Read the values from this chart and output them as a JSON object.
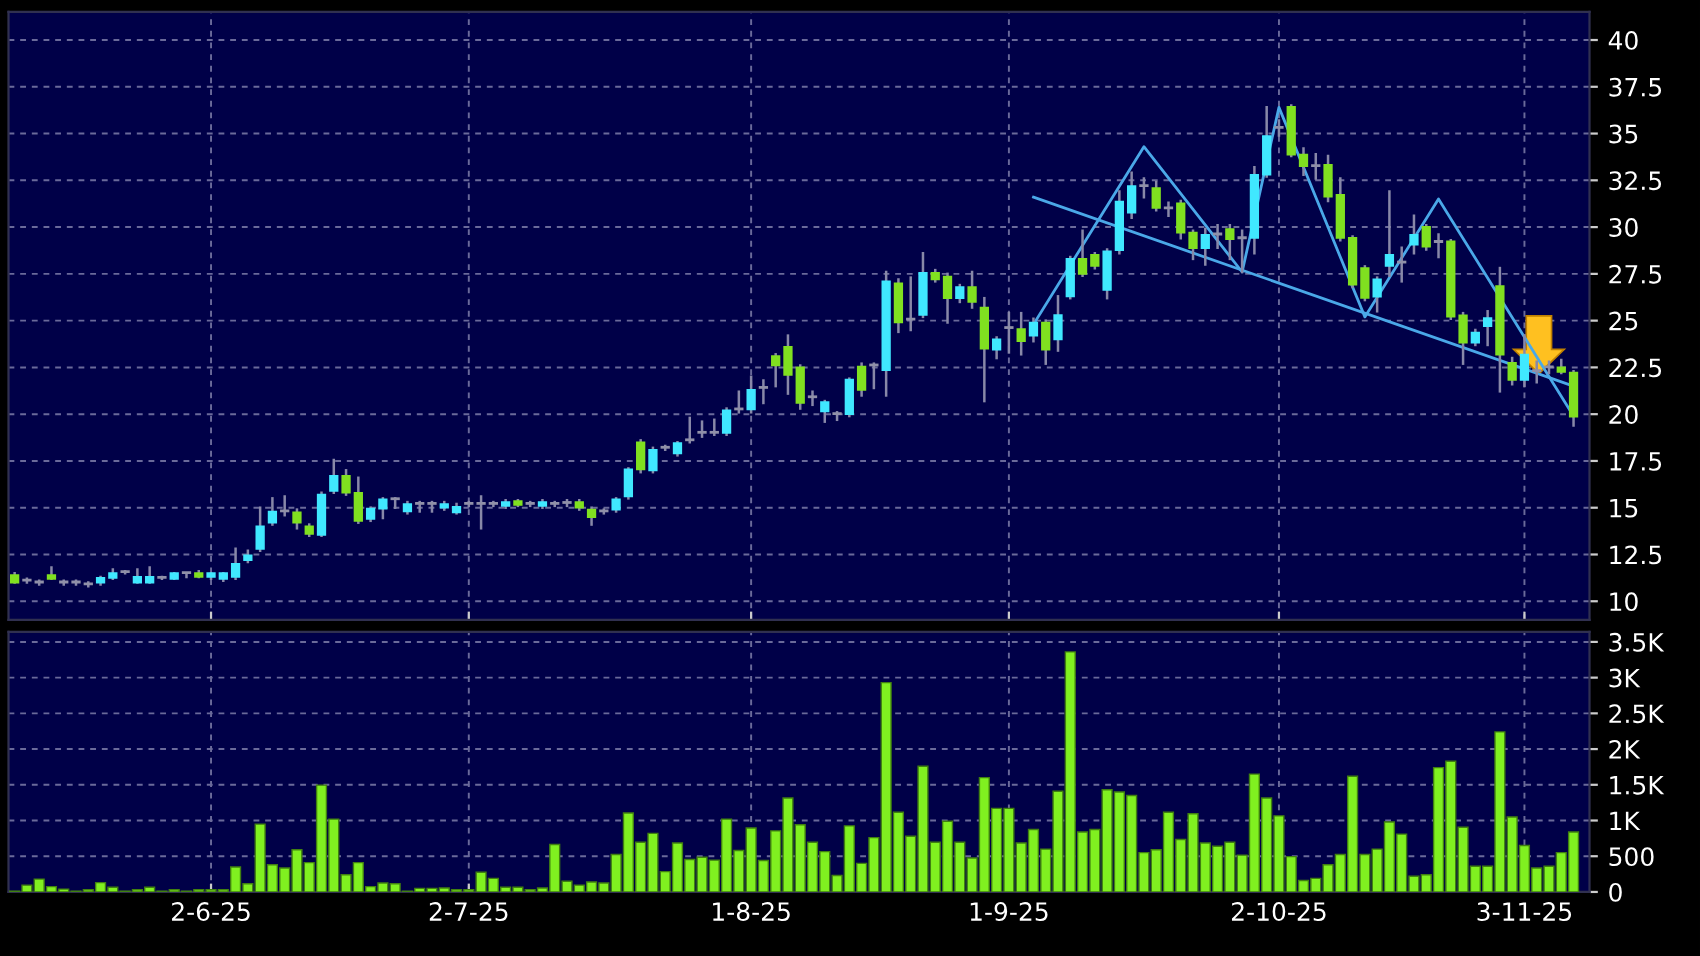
{
  "chart_data": [
    {
      "type": "candlestick",
      "tick_labels": "y",
      "grid": true,
      "categories": [
        null,
        null,
        null,
        null,
        null,
        null,
        null,
        null,
        null,
        null,
        null,
        null,
        null,
        null,
        null,
        null,
        null,
        null,
        null,
        null,
        null,
        null,
        null,
        null,
        null,
        null,
        null,
        null,
        null,
        null,
        null,
        null,
        null,
        null,
        null,
        null,
        null,
        null,
        null,
        null,
        null,
        null,
        null,
        null,
        null,
        null,
        null,
        null,
        null,
        null,
        null,
        null,
        null,
        null,
        null,
        null,
        null,
        null,
        null,
        null,
        null,
        null,
        null,
        null,
        null,
        null,
        null,
        null,
        null,
        null,
        null,
        null,
        null,
        null,
        null,
        null,
        null,
        null,
        null,
        null,
        null,
        null,
        null,
        null,
        null,
        null,
        null,
        null,
        null,
        null,
        null,
        null,
        null,
        null,
        null,
        null,
        null,
        null,
        null,
        null,
        null,
        null,
        null,
        null,
        null,
        null,
        null,
        null,
        null,
        null,
        null,
        null,
        null,
        null,
        null,
        null,
        null,
        null,
        null,
        null,
        null,
        null,
        null,
        null,
        null,
        null,
        null,
        null
      ],
      "ohlc": [
        [
          11.4,
          11.5,
          11.0,
          11.0
        ],
        [
          11.1,
          11.2,
          11.0,
          11.1
        ],
        [
          11.0,
          11.1,
          10.9,
          11.0
        ],
        [
          11.4,
          11.8,
          11.2,
          11.2
        ],
        [
          11.0,
          11.1,
          10.9,
          11.0
        ],
        [
          11.0,
          11.1,
          10.9,
          11.0
        ],
        [
          10.9,
          11.0,
          10.8,
          10.9
        ],
        [
          11.0,
          11.3,
          10.9,
          11.25
        ],
        [
          11.25,
          11.7,
          11.2,
          11.5
        ],
        [
          11.55,
          11.6,
          11.5,
          11.55
        ],
        [
          11.0,
          11.7,
          11.0,
          11.3
        ],
        [
          11.0,
          11.8,
          11.0,
          11.3
        ],
        [
          11.25,
          11.3,
          11.2,
          11.25
        ],
        [
          11.2,
          11.5,
          11.2,
          11.5
        ],
        [
          11.5,
          11.5,
          11.3,
          11.5
        ],
        [
          11.5,
          11.6,
          11.3,
          11.3
        ],
        [
          11.3,
          11.5,
          11.2,
          11.5
        ],
        [
          11.2,
          11.5,
          11.1,
          11.5
        ],
        [
          11.3,
          12.8,
          11.2,
          12.0
        ],
        [
          12.2,
          12.7,
          12.1,
          12.45
        ],
        [
          12.8,
          15.0,
          12.7,
          14.0
        ],
        [
          14.2,
          15.5,
          14.1,
          14.8
        ],
        [
          14.8,
          15.6,
          14.6,
          14.8
        ],
        [
          14.75,
          14.9,
          13.9,
          14.2
        ],
        [
          14.0,
          14.1,
          13.5,
          13.6
        ],
        [
          13.55,
          15.8,
          13.5,
          15.7
        ],
        [
          15.9,
          17.55,
          15.8,
          16.7
        ],
        [
          16.7,
          17.0,
          15.7,
          15.8
        ],
        [
          15.8,
          16.6,
          14.2,
          14.3
        ],
        [
          14.4,
          15.0,
          14.3,
          14.95
        ],
        [
          14.95,
          15.5,
          14.45,
          15.45
        ],
        [
          15.45,
          15.5,
          15.0,
          15.45
        ],
        [
          14.8,
          15.3,
          14.7,
          15.2
        ],
        [
          15.2,
          15.3,
          14.8,
          15.2
        ],
        [
          15.2,
          15.3,
          14.8,
          15.2
        ],
        [
          15.0,
          15.3,
          14.9,
          15.2
        ],
        [
          14.75,
          15.2,
          14.7,
          15.05
        ],
        [
          15.2,
          15.3,
          15.1,
          15.2
        ],
        [
          15.2,
          15.6,
          13.9,
          15.2
        ],
        [
          15.2,
          15.3,
          15.1,
          15.2
        ],
        [
          15.1,
          15.4,
          15.0,
          15.3
        ],
        [
          15.35,
          15.4,
          15.1,
          15.15
        ],
        [
          15.2,
          15.3,
          15.1,
          15.2
        ],
        [
          15.1,
          15.4,
          15.0,
          15.3
        ],
        [
          15.2,
          15.3,
          15.1,
          15.2
        ],
        [
          15.25,
          15.4,
          15.1,
          15.25
        ],
        [
          15.3,
          15.4,
          14.9,
          15.0
        ],
        [
          14.9,
          15.0,
          14.1,
          14.5
        ],
        [
          14.8,
          14.9,
          14.7,
          14.8
        ],
        [
          14.9,
          15.5,
          14.8,
          15.45
        ],
        [
          15.6,
          17.1,
          15.5,
          17.05
        ],
        [
          18.5,
          18.6,
          16.9,
          17.05
        ],
        [
          17.0,
          18.2,
          16.9,
          18.1
        ],
        [
          18.2,
          18.3,
          18.1,
          18.2
        ],
        [
          17.9,
          18.5,
          17.8,
          18.45
        ],
        [
          18.6,
          19.8,
          18.5,
          18.6
        ],
        [
          19.0,
          19.6,
          18.8,
          19.0
        ],
        [
          19.0,
          19.7,
          18.9,
          19.0
        ],
        [
          19.0,
          20.3,
          18.9,
          20.2
        ],
        [
          20.25,
          21.2,
          20.1,
          20.25
        ],
        [
          20.25,
          22.0,
          20.1,
          21.3
        ],
        [
          21.4,
          21.8,
          20.6,
          21.4
        ],
        [
          23.1,
          23.2,
          21.5,
          22.6
        ],
        [
          23.6,
          24.2,
          21.1,
          22.1
        ],
        [
          22.5,
          22.6,
          20.3,
          20.6
        ],
        [
          20.9,
          21.2,
          20.5,
          20.9
        ],
        [
          20.15,
          20.7,
          19.6,
          20.65
        ],
        [
          20.0,
          20.1,
          19.7,
          20.0
        ],
        [
          20.0,
          21.9,
          19.9,
          21.85
        ],
        [
          22.55,
          22.7,
          21.0,
          21.3
        ],
        [
          22.6,
          22.7,
          21.4,
          22.6
        ],
        [
          22.35,
          27.6,
          21.0,
          27.1
        ],
        [
          27.0,
          27.2,
          24.4,
          24.9
        ],
        [
          25.05,
          27.3,
          24.5,
          25.05
        ],
        [
          25.3,
          28.6,
          25.2,
          27.55
        ],
        [
          27.55,
          27.7,
          27.1,
          27.2
        ],
        [
          27.35,
          27.5,
          24.9,
          26.2
        ],
        [
          26.2,
          26.9,
          26.0,
          26.8
        ],
        [
          26.8,
          27.6,
          25.7,
          26.0
        ],
        [
          25.7,
          26.2,
          20.7,
          23.5
        ],
        [
          23.45,
          24.1,
          23.0,
          24.0
        ],
        [
          24.6,
          25.4,
          23.3,
          24.6
        ],
        [
          24.55,
          25.4,
          23.2,
          23.9
        ],
        [
          24.2,
          25.1,
          23.9,
          24.9
        ],
        [
          24.9,
          25.0,
          22.7,
          23.45
        ],
        [
          24.0,
          26.3,
          23.4,
          25.3
        ],
        [
          26.3,
          28.4,
          26.2,
          28.3
        ],
        [
          28.3,
          29.8,
          27.4,
          27.5
        ],
        [
          28.52,
          28.6,
          27.8,
          27.92
        ],
        [
          26.64,
          28.8,
          26.2,
          28.7
        ],
        [
          28.77,
          31.9,
          28.6,
          31.37
        ],
        [
          30.77,
          32.9,
          30.5,
          32.19
        ],
        [
          32.19,
          32.6,
          31.6,
          32.19
        ],
        [
          32.09,
          32.4,
          30.9,
          31.02
        ],
        [
          31.0,
          31.3,
          30.6,
          31.0
        ],
        [
          31.27,
          31.4,
          29.4,
          29.7
        ],
        [
          29.7,
          29.8,
          28.3,
          28.88
        ],
        [
          28.88,
          29.9,
          28.0,
          29.59
        ],
        [
          29.6,
          30.1,
          28.9,
          29.6
        ],
        [
          29.9,
          30.1,
          28.3,
          29.35
        ],
        [
          29.4,
          29.8,
          27.6,
          29.4
        ],
        [
          29.42,
          33.2,
          28.6,
          32.8
        ],
        [
          32.8,
          36.4,
          32.7,
          34.87
        ],
        [
          35.3,
          35.7,
          34.9,
          35.3
        ],
        [
          36.43,
          36.5,
          33.8,
          33.87
        ],
        [
          33.87,
          34.2,
          32.8,
          33.26
        ],
        [
          33.26,
          33.9,
          32.6,
          33.26
        ],
        [
          33.33,
          33.8,
          31.4,
          31.62
        ],
        [
          31.73,
          32.6,
          29.3,
          29.42
        ],
        [
          29.42,
          29.5,
          26.8,
          26.92
        ],
        [
          27.81,
          27.9,
          26.1,
          26.21
        ],
        [
          26.28,
          27.3,
          25.5,
          27.21
        ],
        [
          27.92,
          31.9,
          27.4,
          28.52
        ],
        [
          28.1,
          28.9,
          27.1,
          28.1
        ],
        [
          29.06,
          30.6,
          28.6,
          29.59
        ],
        [
          30.02,
          30.1,
          28.8,
          28.95
        ],
        [
          29.2,
          29.6,
          28.4,
          29.2
        ],
        [
          29.24,
          29.3,
          25.1,
          25.21
        ],
        [
          25.28,
          25.4,
          22.7,
          23.82
        ],
        [
          23.82,
          24.5,
          23.7,
          24.36
        ],
        [
          24.71,
          25.5,
          23.7,
          25.14
        ],
        [
          26.85,
          27.81,
          21.22,
          23.18
        ],
        [
          22.75,
          23.0,
          21.6,
          21.83
        ],
        [
          21.83,
          24.2,
          21.5,
          23.18
        ],
        [
          22.3,
          22.8,
          21.7,
          22.3
        ],
        [
          22.5,
          22.8,
          22.2,
          22.5
        ],
        [
          22.5,
          22.9,
          22.2,
          22.26
        ],
        [
          22.22,
          22.3,
          19.4,
          19.87
        ]
      ],
      "colors": [
        "#80e020",
        "#9090a8",
        "#9090a8",
        "#80e020",
        "#9090a8",
        "#9090a8",
        "#9090a8",
        "#40e8ff",
        "#40e8ff",
        "#9090a8",
        "#40e8ff",
        "#40e8ff",
        "#9090a8",
        "#40e8ff",
        "#9090a8",
        "#80e020",
        "#40e8ff",
        "#40e8ff",
        "#40e8ff",
        "#40e8ff",
        "#40e8ff",
        "#40e8ff",
        "#9090a8",
        "#80e020",
        "#80e020",
        "#40e8ff",
        "#40e8ff",
        "#80e020",
        "#80e020",
        "#40e8ff",
        "#40e8ff",
        "#9090a8",
        "#40e8ff",
        "#9090a8",
        "#9090a8",
        "#40e8ff",
        "#40e8ff",
        "#9090a8",
        "#9090a8",
        "#9090a8",
        "#40e8ff",
        "#80e020",
        "#9090a8",
        "#40e8ff",
        "#9090a8",
        "#9090a8",
        "#80e020",
        "#80e020",
        "#9090a8",
        "#40e8ff",
        "#40e8ff",
        "#80e020",
        "#40e8ff",
        "#9090a8",
        "#40e8ff",
        "#9090a8",
        "#9090a8",
        "#9090a8",
        "#40e8ff",
        "#9090a8",
        "#40e8ff",
        "#9090a8",
        "#80e020",
        "#80e020",
        "#80e020",
        "#9090a8",
        "#40e8ff",
        "#9090a8",
        "#40e8ff",
        "#80e020",
        "#9090a8",
        "#40e8ff",
        "#80e020",
        "#9090a8",
        "#40e8ff",
        "#80e020",
        "#80e020",
        "#40e8ff",
        "#80e020",
        "#80e020",
        "#40e8ff",
        "#9090a8",
        "#80e020",
        "#40e8ff",
        "#80e020",
        "#40e8ff",
        "#40e8ff",
        "#80e020",
        "#80e020",
        "#40e8ff",
        "#40e8ff",
        "#40e8ff",
        "#9090a8",
        "#80e020",
        "#9090a8",
        "#80e020",
        "#80e020",
        "#40e8ff",
        "#9090a8",
        "#80e020",
        "#9090a8",
        "#40e8ff",
        "#40e8ff",
        "#9090a8",
        "#80e020",
        "#80e020",
        "#9090a8",
        "#80e020",
        "#80e020",
        "#80e020",
        "#80e020",
        "#40e8ff",
        "#40e8ff",
        "#9090a8",
        "#40e8ff",
        "#80e020",
        "#9090a8",
        "#80e020",
        "#80e020",
        "#40e8ff",
        "#40e8ff",
        "#80e020",
        "#80e020",
        "#40e8ff",
        "#9090a8",
        "#9090a8",
        "#80e020",
        "#80e020"
      ],
      "series": [
        {
          "type": "line",
          "color": "#4aa8e8",
          "values": [
            null,
            null,
            null,
            null,
            null,
            null,
            null,
            null,
            null,
            null,
            null,
            null,
            null,
            null,
            null,
            null,
            null,
            null,
            null,
            null,
            null,
            null,
            null,
            null,
            null,
            null,
            null,
            null,
            null,
            null,
            null,
            null,
            null,
            null,
            null,
            null,
            null,
            null,
            null,
            null,
            null,
            null,
            null,
            null,
            null,
            null,
            null,
            null,
            null,
            null,
            null,
            null,
            null,
            null,
            null,
            null,
            null,
            null,
            null,
            null,
            null,
            null,
            null,
            null,
            null,
            null,
            null,
            null,
            null,
            null,
            null,
            null,
            null,
            null,
            null,
            null,
            null,
            null,
            null,
            null,
            null,
            null,
            null,
            31.6,
            null,
            null,
            null,
            null,
            null,
            null,
            null,
            null,
            null,
            null,
            null,
            null,
            null,
            null,
            null,
            null,
            null,
            null,
            null,
            null,
            null,
            null,
            null,
            null,
            null,
            null,
            null,
            null,
            null,
            null,
            null,
            null,
            null,
            null,
            null,
            null,
            null,
            null,
            null,
            null,
            null,
            null,
            null,
            21.5
          ]
        },
        {
          "type": "line",
          "color": "#4aa8e8",
          "values": [
            null,
            null,
            null,
            null,
            null,
            null,
            null,
            null,
            null,
            null,
            null,
            null,
            null,
            null,
            null,
            null,
            null,
            null,
            null,
            null,
            null,
            null,
            null,
            null,
            null,
            null,
            null,
            null,
            null,
            null,
            null,
            null,
            null,
            null,
            null,
            null,
            null,
            null,
            null,
            null,
            null,
            null,
            null,
            null,
            null,
            null,
            null,
            null,
            null,
            null,
            null,
            null,
            null,
            null,
            null,
            null,
            null,
            null,
            null,
            null,
            null,
            null,
            null,
            null,
            null,
            null,
            null,
            null,
            null,
            null,
            null,
            null,
            null,
            null,
            null,
            null,
            null,
            null,
            null,
            null,
            null,
            null,
            null,
            24.8,
            null,
            null,
            null,
            null,
            null,
            null,
            null,
            null,
            34.3,
            null,
            null,
            null,
            null,
            null,
            null,
            null,
            27.6,
            null,
            null,
            36.4,
            null,
            null,
            null,
            null,
            null,
            null,
            25.2,
            null,
            null,
            null,
            null,
            null,
            31.5,
            null,
            null,
            null,
            null,
            null,
            null,
            null,
            null,
            null,
            null,
            19.9
          ]
        }
      ],
      "ylim": [
        9,
        41.5
      ],
      "yticks": [
        10,
        12.5,
        15,
        17.5,
        20,
        22.5,
        25,
        27.5,
        30,
        32.5,
        35,
        37.5,
        40
      ]
    },
    {
      "type": "bar",
      "grid": true,
      "color": "#80f020",
      "categories": [
        null,
        null,
        null,
        null,
        null,
        null,
        null,
        null,
        null,
        null,
        null,
        null,
        null,
        null,
        null,
        null,
        "2-6-25",
        null,
        null,
        null,
        null,
        null,
        null,
        null,
        null,
        null,
        null,
        null,
        null,
        null,
        null,
        null,
        null,
        null,
        null,
        null,
        null,
        "2-7-25",
        null,
        null,
        null,
        null,
        null,
        null,
        null,
        null,
        null,
        null,
        null,
        null,
        null,
        null,
        null,
        null,
        null,
        null,
        null,
        null,
        null,
        null,
        "1-8-25",
        null,
        null,
        null,
        null,
        null,
        null,
        null,
        null,
        null,
        null,
        null,
        null,
        null,
        null,
        null,
        null,
        null,
        null,
        null,
        null,
        "1-9-25",
        null,
        null,
        null,
        null,
        null,
        null,
        null,
        null,
        null,
        null,
        null,
        null,
        null,
        null,
        null,
        null,
        null,
        null,
        null,
        null,
        null,
        "2-10-25",
        null,
        null,
        null,
        null,
        null,
        null,
        null,
        null,
        null,
        null,
        null,
        null,
        null,
        null,
        null,
        null,
        null,
        null,
        null,
        "3-11-25",
        null,
        null,
        null,
        null
      ],
      "values": [
        10,
        95,
        180,
        75,
        40,
        10,
        30,
        130,
        65,
        10,
        30,
        65,
        10,
        30,
        10,
        30,
        30,
        30,
        350,
        115,
        950,
        380,
        335,
        590,
        410,
        1495,
        1020,
        240,
        410,
        75,
        125,
        115,
        10,
        50,
        50,
        55,
        30,
        30,
        275,
        190,
        65,
        65,
        30,
        55,
        665,
        150,
        95,
        140,
        125,
        525,
        1105,
        695,
        820,
        285,
        685,
        455,
        485,
        445,
        1020,
        580,
        895,
        440,
        855,
        1315,
        940,
        695,
        565,
        230,
        925,
        400,
        760,
        2930,
        1115,
        780,
        1760,
        695,
        990,
        695,
        475,
        1600,
        1170,
        1170,
        685,
        875,
        600,
        1410,
        3360,
        840,
        875,
        1430,
        1400,
        1350,
        550,
        590,
        1115,
        735,
        1095,
        685,
        640,
        695,
        515,
        1650,
        1315,
        1065,
        495,
        160,
        190,
        380,
        525,
        1620,
        525,
        600,
        980,
        810,
        220,
        240,
        1740,
        1830,
        905,
        360,
        360,
        2240,
        1050,
        650,
        335,
        360,
        550,
        840
      ],
      "ylim": [
        0,
        3640
      ],
      "yticks": [
        0,
        500,
        {
          "value": 1000,
          "label": "1K"
        },
        {
          "value": 1500,
          "label": "1.5K"
        },
        {
          "value": 2000,
          "label": "2K"
        },
        {
          "value": 2500,
          "label": "2.5K"
        },
        {
          "value": 3000,
          "label": "3K"
        },
        {
          "value": 3500,
          "label": "3.5K"
        }
      ]
    }
  ]
}
